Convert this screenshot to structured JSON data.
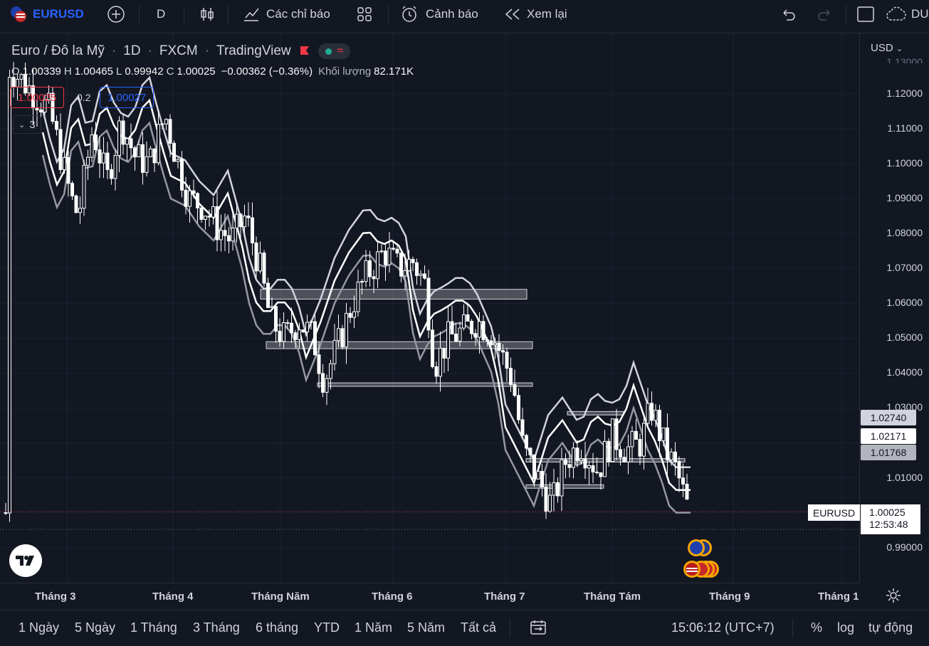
{
  "topbar": {
    "symbol": "EURUSD",
    "interval": "D",
    "indicators_label": "Các chỉ báo",
    "alerts_label": "Cảnh báo",
    "replay_label": "Xem lại",
    "layout_name": "DU"
  },
  "legend": {
    "title": "Euro / Đô la Mỹ",
    "interval": "1D",
    "exchange": "FXCM",
    "source": "TradingView",
    "o_label": "O",
    "o": "1.00339",
    "h_label": "H",
    "h": "1.00465",
    "l_label": "L",
    "l": "0.99942",
    "c_label": "C",
    "c": "1.00025",
    "change": "−0.00362 (−0.36%)",
    "volume_label": "Khối lượng",
    "volume": "82.171K",
    "sell_price": "1.00025",
    "spread": "0.2",
    "buy_price": "1.00027",
    "indicators_count": "3"
  },
  "price_axis": {
    "currency": "USD",
    "ticks": [
      "1.12000",
      "1.11000",
      "1.10000",
      "1.09000",
      "1.08000",
      "1.07000",
      "1.06000",
      "1.05000",
      "1.04000",
      "1.03000",
      "1.01000",
      "0.99000"
    ],
    "top_partial": "1.13000",
    "ma_tags": [
      "1.02740",
      "1.02171",
      "1.01768"
    ],
    "current_symbol": "EURUSD",
    "current_price": "1.00025",
    "countdown": "12:53:48"
  },
  "time_axis": {
    "months": [
      "Tháng 3",
      "Tháng 4",
      "Tháng Năm",
      "Tháng 6",
      "Tháng 7",
      "Tháng Tám",
      "Tháng 9",
      "Tháng 1"
    ]
  },
  "bottombar": {
    "ranges": [
      "1 Ngày",
      "5 Ngày",
      "1 Tháng",
      "3 Tháng",
      "6 tháng",
      "YTD",
      "1 Năm",
      "5 Năm",
      "Tất cả"
    ],
    "clock": "15:06:12 (UTC+7)",
    "percent": "%",
    "log": "log",
    "auto": "tự động"
  },
  "colors": {
    "background": "#131722",
    "accent": "#2962ff",
    "bear": "#f23645",
    "candle": "#ffffff"
  }
}
